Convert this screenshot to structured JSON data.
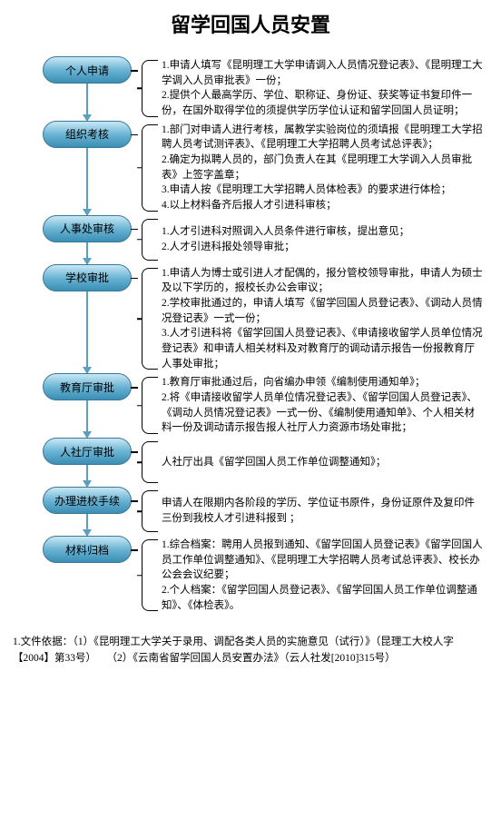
{
  "title": "留学回国人员安置",
  "steps": [
    {
      "id": "step1",
      "label": "个人申请",
      "desc": [
        "1.申请人填写《昆明理工大学申请调入人员情况登记表》、《昆明理工大学调入人员审批表》一份；",
        "2.提供个人最高学历、学位、职称证、身份证、获奖等证书复印件一份，在国外取得学位的须提供学历学位认证和留学回国人员证明；"
      ]
    },
    {
      "id": "step2",
      "label": "组织考核",
      "desc": [
        "1.部门对申请人进行考核，属教学实验岗位的须填报《昆明理工大学招聘人员考试测评表》、《昆明理工大学招聘人员考试总评表》；",
        "2.确定为拟聘人员的，部门负责人在其《昆明理工大学调入人员审批表》上签字盖章；",
        "3.申请人按《昆明理工大学招聘人员体检表》的要求进行体检；",
        "4.以上材料备齐后报人才引进科审核；"
      ]
    },
    {
      "id": "step3",
      "label": "人事处审核",
      "desc": [
        "1.人才引进科对照调入人员条件进行审核，提出意见；",
        "2.人才引进科报处领导审批；"
      ]
    },
    {
      "id": "step4",
      "label": "学校审批",
      "desc": [
        "1.申请人为博士或引进人才配偶的，报分管校领导审批，申请人为硕士及以下学历的，报校长办公会审议；",
        "2.学校审批通过的，申请人填写《留学回国人员登记表》、《调动人员情况登记表》一式一份；",
        "3.人才引进科将《留学回国人员登记表》、《申请接收留学人员单位情况登记表》和申请人相关材料及对教育厅的调动请示报告一份报教育厅人事处审批；"
      ]
    },
    {
      "id": "step5",
      "label": "教育厅审批",
      "desc": [
        "1.教育厅审批通过后，向省编办申领《编制使用通知单》；",
        "2.将《申请接收留学人员单位情况登记表》、《留学回国人员登记表》、《调动人员情况登记表》一式一份、《编制使用通知单》、个人相关材料一份及调动请示报告报人社厅人力资源市场处审批；"
      ]
    },
    {
      "id": "step6",
      "label": "人社厅审批",
      "desc": [
        "人社厅出具《留学回国人员工作单位调整通知》；"
      ]
    },
    {
      "id": "step7",
      "label": "办理进校手续",
      "desc": [
        "申请人在限期内各阶段的学历、学位证书原件，身份证原件及复印件三份到我校人才引进科报到 ；"
      ]
    },
    {
      "id": "step8",
      "label": "材料归档",
      "desc": [
        "1.综合档案：聘用人员报到通知、《留学回国人员登记表》《留学回国人员工作单位调整通知》、《昆明理工大学招聘人员考试总评表》、校长办公会会议纪要；",
        "2.个人档案：《留学回国人员登记表》、《留学回国人员工作单位调整通知》、《体检表》。"
      ]
    }
  ],
  "footer": [
    "1.文件依据：（1）《昆明理工大学关于录用、调配各类人员的实施意见（试行）》（昆理工大校人字【2004】第33号）　　（2）《云南省留学回国人员安置办法》（云人社发[2010]315号）"
  ],
  "colors": {
    "node_border": "#3b7896",
    "node_grad_top": "#c9e8f5",
    "node_grad_mid": "#6bb4d4",
    "node_grad_bot": "#3a8eb5",
    "arrow": "#5a9ec0",
    "text": "#000000",
    "bg": "#ffffff"
  },
  "type": "flowchart"
}
